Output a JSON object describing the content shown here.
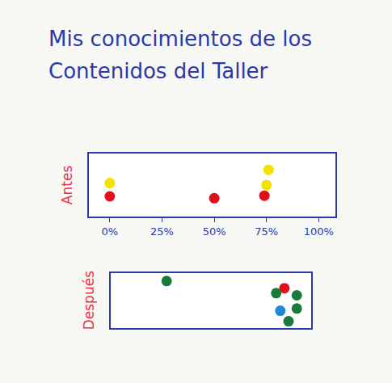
{
  "chart_data": [
    {
      "type": "scatter",
      "title": "Mis conocimientos de los Contenidos del Taller",
      "ylabel": "Antes",
      "x": [
        0,
        0,
        50,
        76,
        75,
        74
      ],
      "y": [
        5.3,
        3.2,
        2.9,
        7.4,
        5.0,
        3.3
      ],
      "colors": [
        "#f2e200",
        "#e0101a",
        "#e0101a",
        "#f2e200",
        "#f2e200",
        "#e0101a"
      ],
      "marker": "circle",
      "xlim": [
        -10,
        108
      ],
      "xticks": [
        {
          "value": 0,
          "label": "0%"
        },
        {
          "value": 25,
          "label": "25%"
        },
        {
          "value": 50,
          "label": "50%"
        },
        {
          "value": 75,
          "label": "75%"
        },
        {
          "value": 100,
          "label": "100%"
        }
      ],
      "ylim": [
        0,
        10
      ],
      "tick_labels": "x",
      "grid": false
    },
    {
      "type": "scatter",
      "ylabel": "Después",
      "x": [
        30,
        87,
        83,
        93,
        85,
        93,
        89
      ],
      "y": [
        8.5,
        7.2,
        6.3,
        5.9,
        3.1,
        3.5,
        1.2
      ],
      "colors": [
        "#1a7a3a",
        "#e0101a",
        "#1a7a3a",
        "#1a7a3a",
        "#1e88d6",
        "#1a7a3a",
        "#1a7a3a"
      ],
      "marker": "circle",
      "xlim": [
        3,
        100
      ],
      "ylim": [
        0,
        10
      ],
      "tick_labels": false,
      "grid": false
    }
  ]
}
